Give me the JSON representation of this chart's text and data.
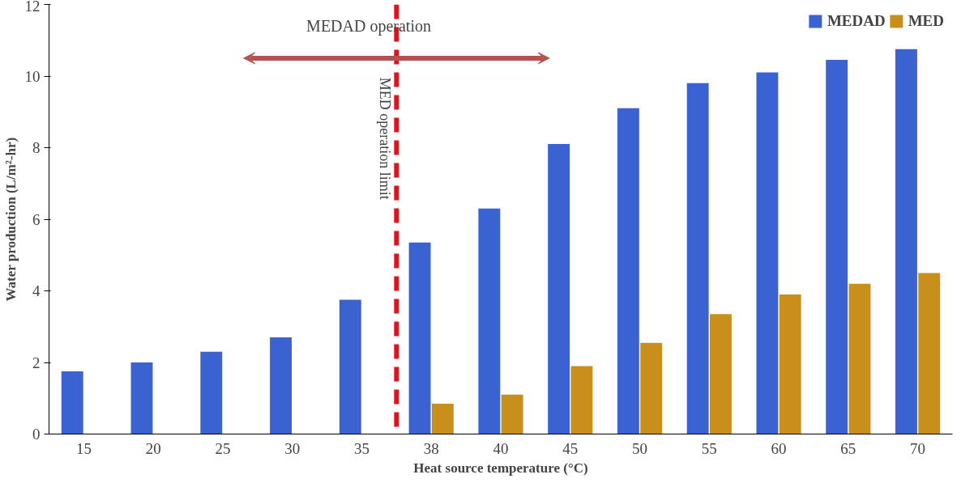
{
  "chart_data": {
    "type": "bar",
    "xlabel": "Heat source temperature (°C)",
    "ylabel": "Water production (L/m²-hr)",
    "categories": [
      "15",
      "20",
      "25",
      "30",
      "35",
      "38",
      "40",
      "45",
      "50",
      "55",
      "60",
      "65",
      "70"
    ],
    "series": [
      {
        "name": "MEDAD",
        "color": "#3a62d0",
        "values": [
          1.75,
          2.0,
          2.3,
          2.7,
          3.75,
          5.35,
          6.3,
          8.1,
          9.1,
          9.8,
          10.1,
          10.45,
          10.75
        ]
      },
      {
        "name": "MED",
        "color": "#c8901a",
        "values": [
          null,
          null,
          null,
          null,
          null,
          0.85,
          1.1,
          1.9,
          2.55,
          3.35,
          3.9,
          4.2,
          4.5
        ]
      }
    ],
    "ylim": [
      0,
      12
    ],
    "yticks": [
      0,
      2,
      4,
      6,
      8,
      10,
      12
    ],
    "grid": false,
    "legend": "top right",
    "ref_lines": [
      {
        "axis": "x",
        "value": "38",
        "label": "MED operation limit",
        "color": "#e0121b",
        "line_style": "dashed"
      }
    ],
    "annotations": [
      "MEDAD operation"
    ]
  }
}
